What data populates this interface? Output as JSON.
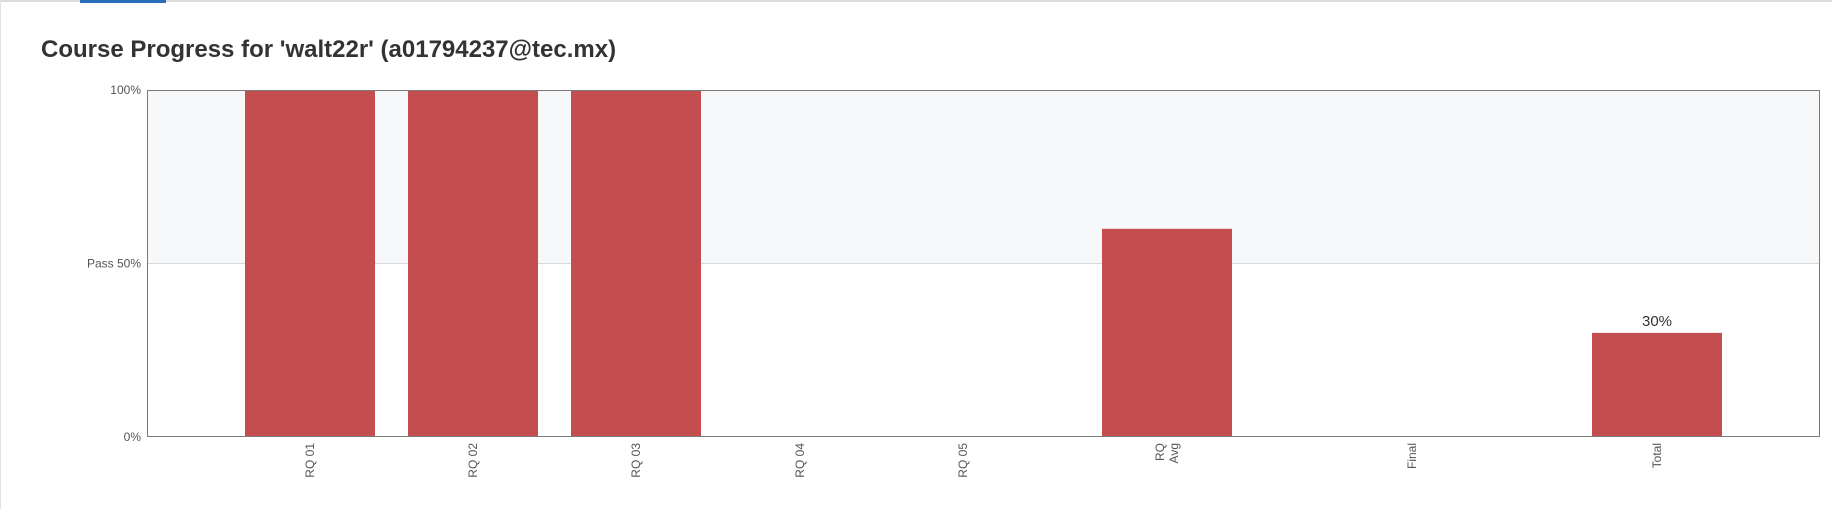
{
  "page": {
    "title": "Course Progress for 'walt22r' (a01794237@tec.mx)"
  },
  "colors": {
    "bar": "#c44e4f",
    "pass_region": "#f7f8fa",
    "axis": "#7a7a7a",
    "gridline": "#d9d9d9",
    "tab_accent": "#2a6ebb"
  },
  "chart_data": {
    "type": "bar",
    "categories": [
      "RQ 01",
      "RQ 02",
      "RQ 03",
      "RQ 04",
      "RQ 05",
      "RQ\nAvg",
      "Final",
      "Total"
    ],
    "values": [
      100,
      100,
      100,
      0,
      0,
      60,
      0,
      30
    ],
    "data_labels": [
      null,
      null,
      null,
      null,
      null,
      null,
      null,
      "30%"
    ],
    "ylim": [
      0,
      100
    ],
    "yticks": [
      {
        "value": 0,
        "label": "0%"
      },
      {
        "value": 50,
        "label": "Pass 50%"
      },
      {
        "value": 100,
        "label": "100%"
      }
    ],
    "pass_threshold": 50,
    "title": "",
    "xlabel": "",
    "ylabel": ""
  }
}
